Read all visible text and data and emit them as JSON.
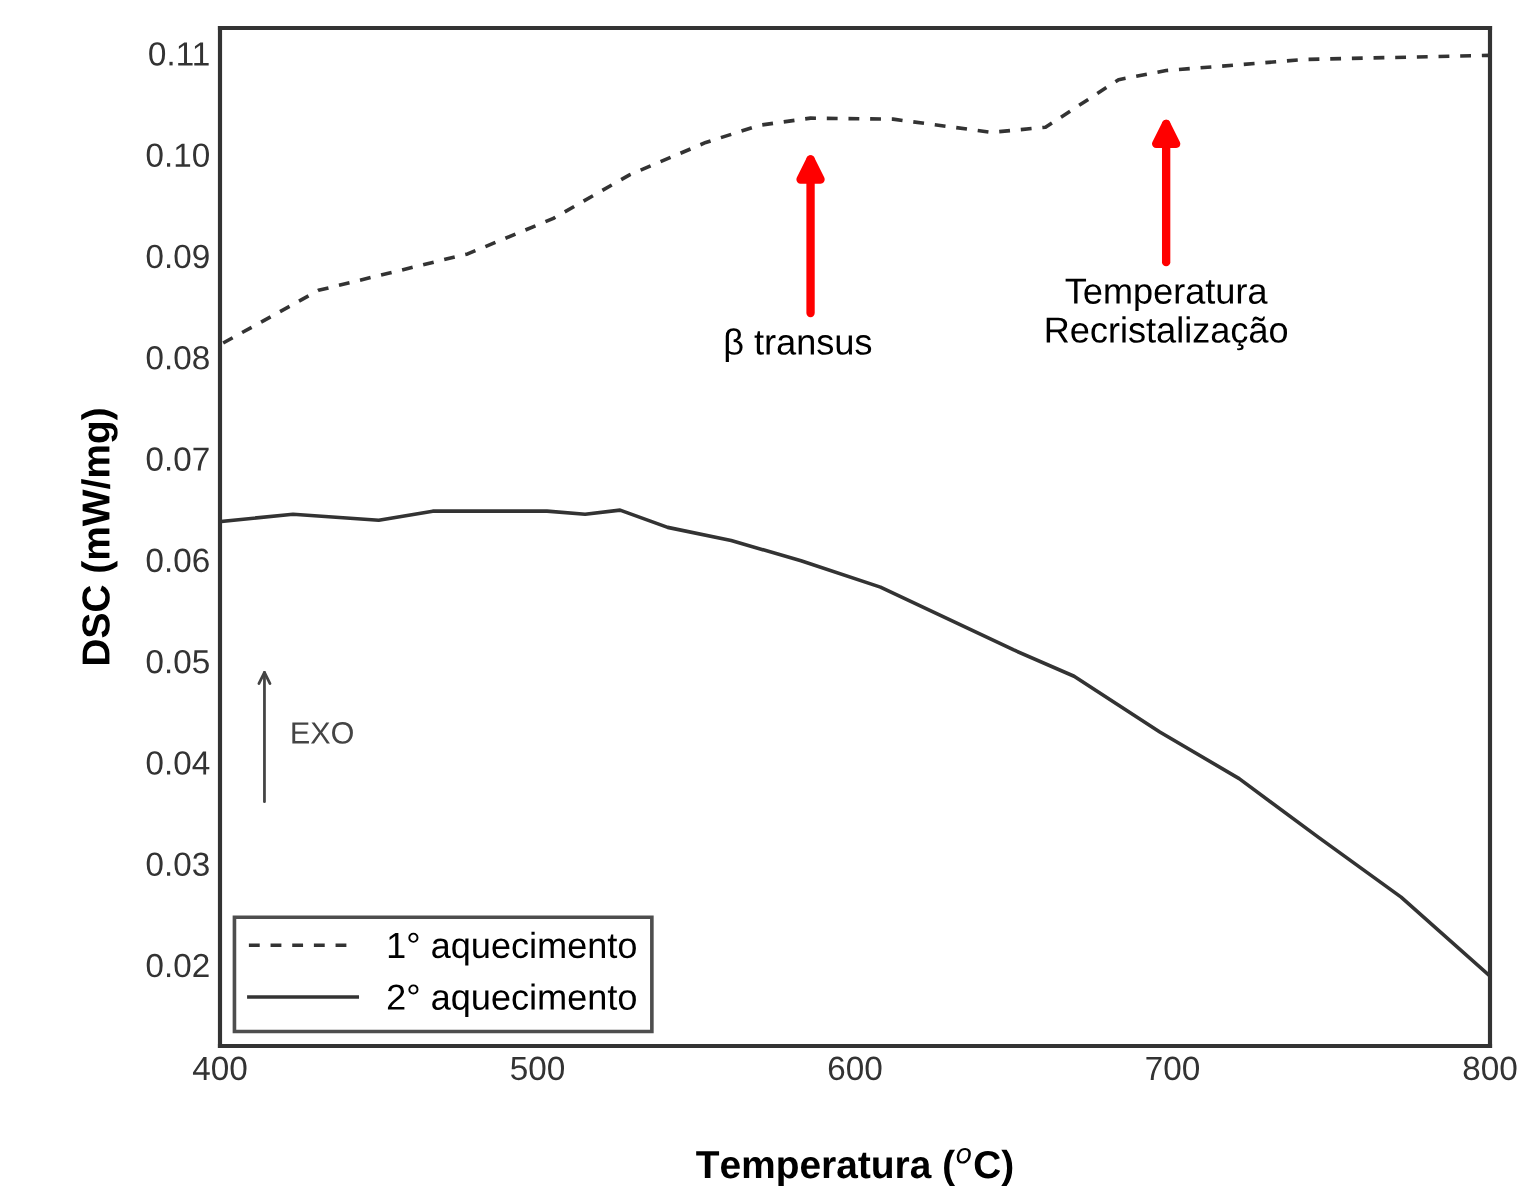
{
  "chart_data": {
    "type": "line",
    "xlabel": "Temperatura ($^{o}$C)",
    "ylabel": "DSC (mW/mg)",
    "xlim": [
      400,
      800
    ],
    "xticks": [
      400,
      500,
      600,
      700,
      800
    ],
    "ylim": [
      0.012,
      0.1125
    ],
    "yticks": [
      0.02,
      0.03,
      0.04,
      0.05,
      0.06,
      0.07,
      0.08,
      0.09,
      {
        "value": 0.1,
        "label": "0.10"
      },
      0.11
    ],
    "grid": false,
    "legend": "bottom left",
    "marker": "none",
    "series": [
      {
        "name": "1° aquecimento",
        "color": "#333333",
        "line_style": "dashed",
        "x": [
          401,
          431,
          478,
          505,
          529,
          553,
          570,
          586,
          612,
          643,
          660,
          683,
          698,
          742,
          800
        ],
        "values": [
          0.0814,
          0.0866,
          0.0902,
          0.0937,
          0.098,
          0.1012,
          0.1029,
          0.1036,
          0.1035,
          0.1022,
          0.1027,
          0.1074,
          0.1083,
          0.1094,
          0.1098
        ]
      },
      {
        "name": "2° aquecimento",
        "color": "#333333",
        "line_style": "solid",
        "x": [
          401,
          423,
          450,
          467,
          503,
          515,
          526,
          541,
          561,
          583,
          608,
          650,
          669,
          696,
          721,
          746,
          772,
          800
        ],
        "values": [
          0.0638,
          0.0645,
          0.0639,
          0.0648,
          0.0648,
          0.0645,
          0.0649,
          0.0632,
          0.0619,
          0.0599,
          0.0573,
          0.0511,
          0.0485,
          0.043,
          0.0384,
          0.0326,
          0.0267,
          0.0189
        ]
      }
    ],
    "annotations": [
      "β transus",
      "Temperatura\nRecristalização",
      "EXO"
    ]
  }
}
